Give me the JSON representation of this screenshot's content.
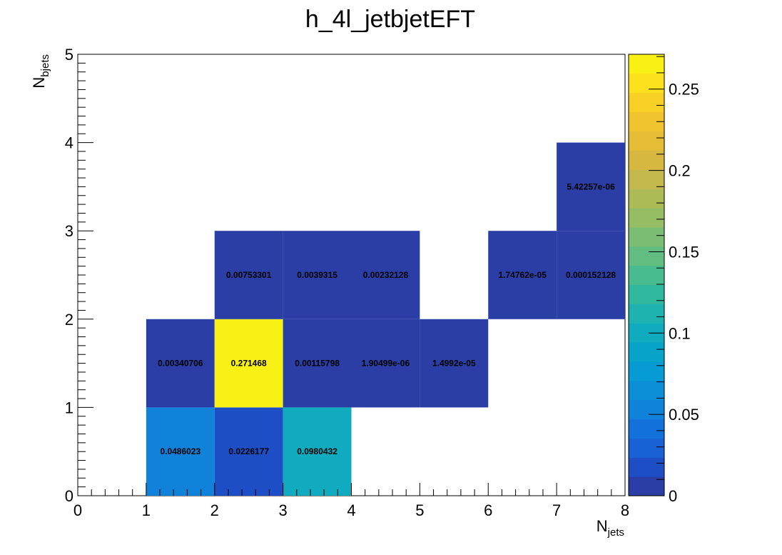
{
  "chart_data": {
    "type": "heatmap",
    "title": "h_4l_jetbjetEFT",
    "xlabel": {
      "main": "N",
      "sub": "jets"
    },
    "ylabel": {
      "main": "N",
      "sub": "bjets"
    },
    "xlim": [
      0,
      8
    ],
    "ylim": [
      0,
      5
    ],
    "zlim": [
      0,
      0.2714
    ],
    "x_ticks": [
      "0",
      "1",
      "2",
      "3",
      "4",
      "5",
      "6",
      "7",
      "8"
    ],
    "y_ticks": [
      "0",
      "1",
      "2",
      "3",
      "4",
      "5"
    ],
    "z_ticks": [
      "0",
      "0.05",
      "0.1",
      "0.15",
      "0.2",
      "0.25"
    ],
    "colorbar_position": "right",
    "cells": [
      {
        "x": [
          1,
          2
        ],
        "y": [
          0,
          1
        ],
        "value": 0.0486023,
        "label": "0.0486023"
      },
      {
        "x": [
          2,
          3
        ],
        "y": [
          0,
          1
        ],
        "value": 0.0226177,
        "label": "0.0226177"
      },
      {
        "x": [
          3,
          4
        ],
        "y": [
          0,
          1
        ],
        "value": 0.0980432,
        "label": "0.0980432"
      },
      {
        "x": [
          1,
          2
        ],
        "y": [
          1,
          2
        ],
        "value": 0.00340706,
        "label": "0.00340706"
      },
      {
        "x": [
          2,
          3
        ],
        "y": [
          1,
          2
        ],
        "value": 0.271468,
        "label": "0.271468"
      },
      {
        "x": [
          3,
          4
        ],
        "y": [
          1,
          2
        ],
        "value": 0.00115798,
        "label": "0.00115798"
      },
      {
        "x": [
          4,
          5
        ],
        "y": [
          1,
          2
        ],
        "value": 1.90499e-06,
        "label": "1.90499e-06"
      },
      {
        "x": [
          5,
          6
        ],
        "y": [
          1,
          2
        ],
        "value": 1.4992e-05,
        "label": "1.4992e-05"
      },
      {
        "x": [
          2,
          3
        ],
        "y": [
          2,
          3
        ],
        "value": 0.00753301,
        "label": "0.00753301"
      },
      {
        "x": [
          3,
          4
        ],
        "y": [
          2,
          3
        ],
        "value": 0.0039315,
        "label": "0.0039315"
      },
      {
        "x": [
          4,
          5
        ],
        "y": [
          2,
          3
        ],
        "value": 0.00232128,
        "label": "0.00232128"
      },
      {
        "x": [
          6,
          7
        ],
        "y": [
          2,
          3
        ],
        "value": 1.74762e-05,
        "label": "1.74762e-05"
      },
      {
        "x": [
          7,
          8
        ],
        "y": [
          2,
          3
        ],
        "value": 0.000152128,
        "label": "0.000152128"
      },
      {
        "x": [
          7,
          8
        ],
        "y": [
          3,
          4
        ],
        "value": 5.42257e-06,
        "label": "5.42257e-06"
      }
    ],
    "palette": [
      "#2a3ea5",
      "#1e4ec6",
      "#1962d5",
      "#1271da",
      "#1082d9",
      "#0b8fd6",
      "#069bd2",
      "#07a3c8",
      "#10abbf",
      "#1eb3b0",
      "#30b89f",
      "#48bc8f",
      "#62bd81",
      "#7bbe73",
      "#95bd64",
      "#adbb57",
      "#c3b84b",
      "#d6b73f",
      "#e5bc35",
      "#f1c42d",
      "#f8d025",
      "#fbe11d",
      "#f9f116"
    ],
    "grid": false
  }
}
